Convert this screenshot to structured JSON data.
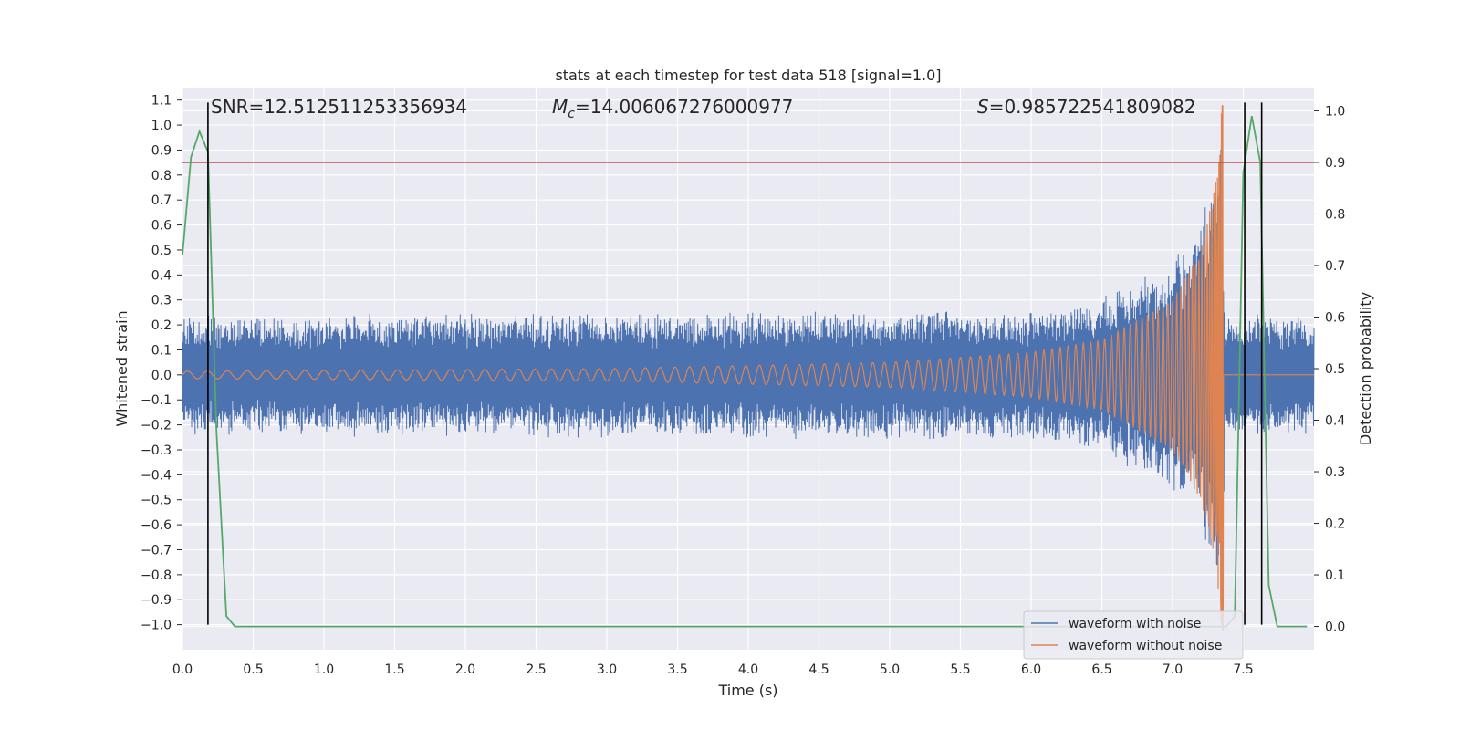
{
  "chart_data": {
    "type": "line",
    "title": "stats at each timestep for test data 518 [signal=1.0]",
    "xlabel": "Time (s)",
    "ylabel_left": "Whitened strain",
    "ylabel_right": "Detection probability",
    "xlim": [
      0.0,
      8.0
    ],
    "ylim_left": [
      -1.1,
      1.15
    ],
    "ylim_right": [
      -0.045,
      1.045
    ],
    "x_ticks": [
      "0.0",
      "0.5",
      "1.0",
      "1.5",
      "2.0",
      "2.5",
      "3.0",
      "3.5",
      "4.0",
      "4.5",
      "5.0",
      "5.5",
      "6.0",
      "6.5",
      "7.0",
      "7.5"
    ],
    "y_left_ticks": [
      "1.1",
      "1.0",
      "0.9",
      "0.8",
      "0.7",
      "0.6",
      "0.5",
      "0.4",
      "0.3",
      "0.2",
      "0.1",
      "0.0",
      "−0.1",
      "−0.2",
      "−0.3",
      "−0.4",
      "−0.5",
      "−0.6",
      "−0.7",
      "−0.8",
      "−0.9",
      "−1.0"
    ],
    "y_right_ticks": [
      "1.0",
      "0.9",
      "0.8",
      "0.7",
      "0.6",
      "0.5",
      "0.4",
      "0.3",
      "0.2",
      "0.1",
      "0.0"
    ],
    "grid": true,
    "legend_position": "bottom-right",
    "annotations": {
      "snr": "SNR=12.512511253356934",
      "mc_symbol": "M",
      "mc_sub": "c",
      "mc_value": "=14.006067276000977",
      "s_symbol": "S",
      "s_value": "=0.985722541809082"
    },
    "threshold": {
      "value": 0.9,
      "axis": "right",
      "color": "#c44e52"
    },
    "event_lines_x": [
      0.18,
      7.51,
      7.63
    ],
    "series": [
      {
        "name": "waveform with noise",
        "color": "#4c72b0",
        "axis": "left",
        "noise_envelope": [
          [
            0.0,
            0.22
          ],
          [
            6.0,
            0.24
          ],
          [
            6.5,
            0.3
          ],
          [
            6.9,
            0.4
          ],
          [
            7.1,
            0.5
          ],
          [
            7.2,
            0.6
          ],
          [
            7.28,
            0.75
          ],
          [
            7.33,
            0.9
          ],
          [
            7.35,
            0.95
          ],
          [
            7.37,
            0.22
          ],
          [
            8.0,
            0.22
          ]
        ]
      },
      {
        "name": "waveform without noise",
        "color": "#dd8452",
        "axis": "left",
        "chirp_amplitude": [
          [
            0.0,
            0.015
          ],
          [
            3.0,
            0.025
          ],
          [
            5.0,
            0.05
          ],
          [
            6.0,
            0.09
          ],
          [
            6.5,
            0.14
          ],
          [
            7.0,
            0.3
          ],
          [
            7.2,
            0.5
          ],
          [
            7.3,
            0.75
          ],
          [
            7.35,
            1.08
          ]
        ],
        "merger_time": 7.36
      },
      {
        "name": "detection probability",
        "color": "#55a868",
        "axis": "right",
        "x": [
          0.0,
          0.06,
          0.12,
          0.18,
          0.24,
          0.31,
          0.37,
          0.43,
          7.32,
          7.38,
          7.44,
          7.5,
          7.56,
          7.62,
          7.68,
          7.74,
          7.95
        ],
        "y": [
          0.72,
          0.91,
          0.96,
          0.92,
          0.38,
          0.02,
          0.0,
          0.0,
          0.0,
          0.0,
          0.02,
          0.88,
          0.99,
          0.9,
          0.08,
          0.0,
          0.0
        ]
      }
    ]
  }
}
